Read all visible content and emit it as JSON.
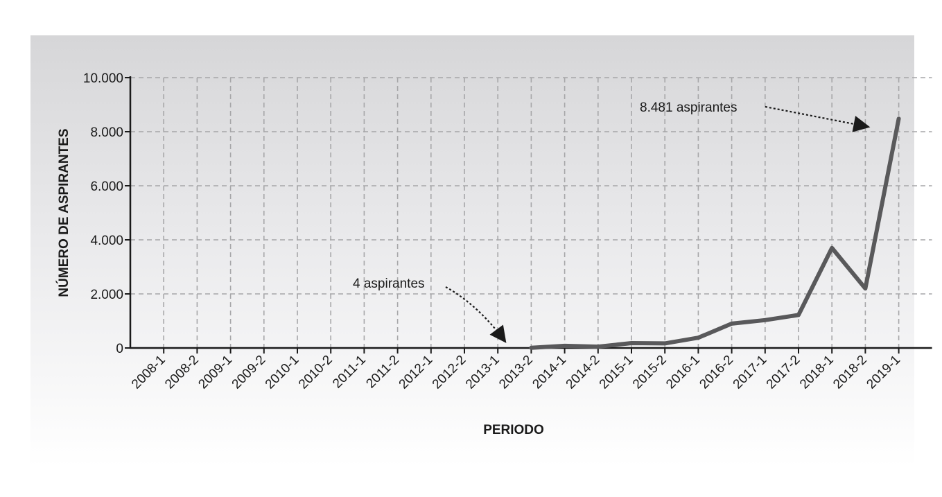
{
  "chart_data": {
    "type": "line",
    "xlabel": "PERIODO",
    "ylabel": "NÚMERO DE ASPIRANTES",
    "ylim": [
      0,
      10000
    ],
    "yticks": [
      0,
      2000,
      4000,
      6000,
      8000,
      10000
    ],
    "ytick_labels": [
      "0",
      "2.000",
      "4.000",
      "6.000",
      "8.000",
      "10.000"
    ],
    "grid": true,
    "categories": [
      "2008-1",
      "2008-2",
      "2009-1",
      "2009-2",
      "2010-1",
      "2010-2",
      "2011-1",
      "2011-2",
      "2012-1",
      "2012-2",
      "2013-1",
      "2013-2",
      "2014-1",
      "2014-2",
      "2015-1",
      "2015-2",
      "2016-1",
      "2016-2",
      "2017-1",
      "2017-2",
      "2018-1",
      "2018-2",
      "2019-1"
    ],
    "series": [
      {
        "x": [
          "2013-2",
          "2014-1",
          "2014-2",
          "2015-1",
          "2015-2",
          "2016-1",
          "2016-2",
          "2017-1",
          "2017-2",
          "2018-1",
          "2018-2",
          "2019-1"
        ],
        "values": [
          4,
          80,
          50,
          180,
          170,
          380,
          900,
          1030,
          1220,
          3700,
          2200,
          8481
        ],
        "color": "#59595b"
      }
    ],
    "annotations": [
      {
        "text": "4 aspirantes",
        "x": "2013-2",
        "y": 4
      },
      {
        "text": "8.481 aspirantes",
        "x": "2019-1",
        "y": 8481
      }
    ]
  }
}
